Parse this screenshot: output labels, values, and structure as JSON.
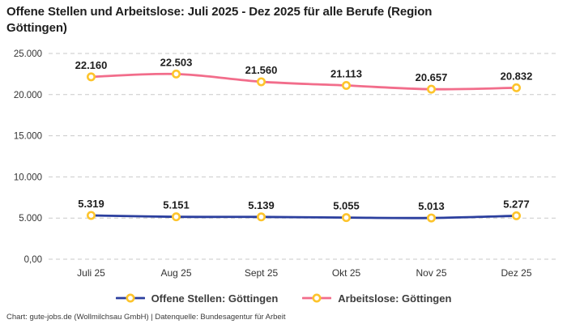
{
  "title": {
    "line1": "Offene Stellen und Arbeitslose: Juli 2025 - Dez 2025 für alle Berufe (Region",
    "line2": "Göttingen)"
  },
  "footer": {
    "text": "Chart: gute-jobs.de (Wollmilchsau GmbH) | Datenquelle: Bundesagentur für Arbeit"
  },
  "chart_data": {
    "type": "line",
    "categories": [
      "Juli 25",
      "Aug 25",
      "Sept 25",
      "Okt 25",
      "Nov 25",
      "Dez 25"
    ],
    "series": [
      {
        "id": "offene-stellen",
        "name": "Offene Stellen: Göttingen",
        "values": [
          5319,
          5151,
          5139,
          5055,
          5013,
          5277
        ],
        "labels": [
          "5.319",
          "5.151",
          "5.139",
          "5.055",
          "5.013",
          "5.277"
        ],
        "color": "#2B3F9E"
      },
      {
        "id": "arbeitslose",
        "name": "Arbeitslose: Göttingen",
        "values": [
          22160,
          22503,
          21560,
          21113,
          20657,
          20832
        ],
        "labels": [
          "22.160",
          "22.503",
          "21.560",
          "21.113",
          "20.657",
          "20.832"
        ],
        "color": "#F26D8B"
      }
    ],
    "marker": {
      "fill": "#FFFFFF",
      "stroke": "#FDC42C"
    },
    "yticks": [
      {
        "value": 0,
        "label": "0,00"
      },
      {
        "value": 5000,
        "label": "5.000"
      },
      {
        "value": 10000,
        "label": "10.000"
      },
      {
        "value": 15000,
        "label": "15.000"
      },
      {
        "value": 20000,
        "label": "20.000"
      },
      {
        "value": 25000,
        "label": "25.000"
      }
    ],
    "ylim": [
      0,
      25000
    ],
    "grid": {
      "style": "dashed",
      "color": "#C9C9C9"
    },
    "legend_position": "bottom-center"
  }
}
